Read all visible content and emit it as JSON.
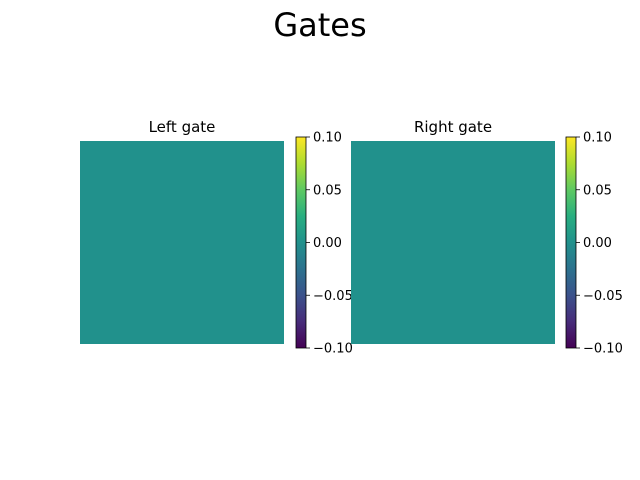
{
  "figure": {
    "title": "Gates"
  },
  "chart_data": [
    {
      "type": "heatmap",
      "title": "Left gate",
      "values": [
        [
          0.0
        ]
      ],
      "cell_color": "#21918c",
      "colorbar": {
        "colormap": "viridis",
        "range": [
          -0.1,
          0.1
        ],
        "ticks": [
          0.1,
          0.05,
          0.0,
          -0.05,
          -0.1
        ],
        "tick_labels": [
          "0.10",
          "0.05",
          "0.00",
          "−0.05",
          "−0.10"
        ]
      },
      "axes_visible": false
    },
    {
      "type": "heatmap",
      "title": "Right gate",
      "values": [
        [
          0.0
        ]
      ],
      "cell_color": "#21918c",
      "colorbar": {
        "colormap": "viridis",
        "range": [
          -0.1,
          0.1
        ],
        "ticks": [
          0.1,
          0.05,
          0.0,
          -0.05,
          -0.1
        ],
        "tick_labels": [
          "0.10",
          "0.05",
          "0.00",
          "−0.05",
          "−0.10"
        ]
      },
      "axes_visible": false
    }
  ]
}
